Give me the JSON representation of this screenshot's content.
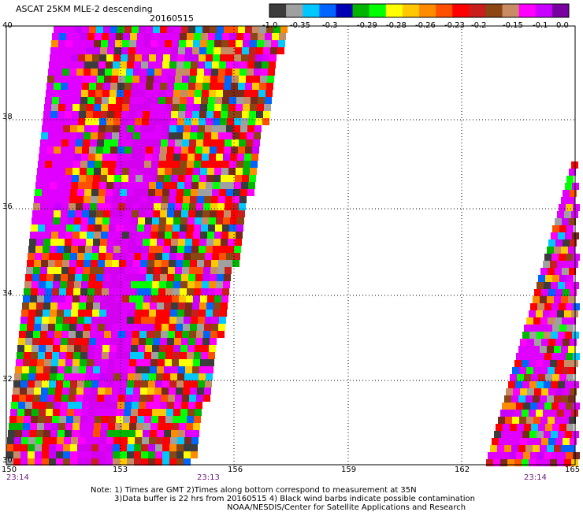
{
  "header": {
    "title": "ASCAT 25KM MLE-2 descending",
    "date": "20160515"
  },
  "colorbar": {
    "colors": [
      "#3c3c3c",
      "#a0a0a0",
      "#00c8ff",
      "#0064ff",
      "#0000b4",
      "#00b400",
      "#00ff00",
      "#ffff00",
      "#ffc800",
      "#ff8c00",
      "#ff5000",
      "#ff0000",
      "#c81e1e",
      "#8c4614",
      "#c88c64",
      "#ff00ff",
      "#c800ff",
      "#7800a0"
    ],
    "labels": [
      "-1.0",
      "-0.35",
      "-0.3",
      "-0.29",
      "-0.28",
      "-0.26",
      "-0.23",
      "-0.2",
      "-0.15",
      "-0.1",
      "0.0"
    ]
  },
  "axes": {
    "x_ticks": [
      "150",
      "153",
      "156",
      "159",
      "162",
      "165"
    ],
    "y_ticks": [
      "40",
      "38",
      "36",
      "34",
      "32",
      "30"
    ]
  },
  "times": [
    "23:14",
    "23:13",
    "23:14"
  ],
  "notes": {
    "line1": "Note: 1) Times are GMT 2)Times along bottom correspond to measurement at 35N",
    "line2": "3)Data buffer is 22 hrs from 20160515 4) Black wind barbs indicate possible contamination",
    "line3": "NOAA/NESDIS/Center for Satellite Applications and Research"
  }
}
